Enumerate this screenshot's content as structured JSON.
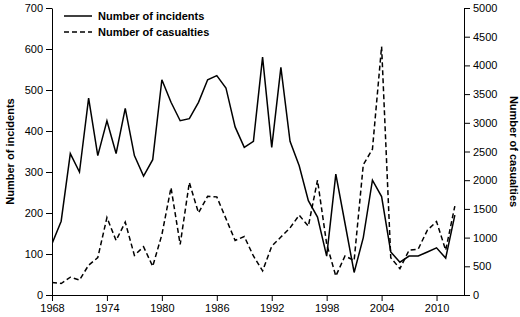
{
  "chart_data": {
    "type": "line",
    "ylabel": "Number of incidents",
    "y2label": "Number of casualties",
    "x": [
      1968,
      1969,
      1970,
      1971,
      1972,
      1973,
      1974,
      1975,
      1976,
      1977,
      1978,
      1979,
      1980,
      1981,
      1982,
      1983,
      1984,
      1985,
      1986,
      1987,
      1988,
      1989,
      1990,
      1991,
      1992,
      1993,
      1994,
      1995,
      1996,
      1997,
      1998,
      1999,
      2000,
      2001,
      2002,
      2003,
      2004,
      2005,
      2006,
      2007,
      2008,
      2009,
      2010,
      2011,
      2012
    ],
    "xlim": [
      1968,
      2013
    ],
    "xticks": [
      1968,
      1974,
      1980,
      1986,
      1992,
      1998,
      2004,
      2010
    ],
    "ylim": [
      0,
      700
    ],
    "yticks": [
      0,
      100,
      200,
      300,
      400,
      500,
      600,
      700
    ],
    "y2lim": [
      0,
      5000
    ],
    "y2ticks": [
      0,
      500,
      1000,
      1500,
      2000,
      2500,
      3000,
      3500,
      4000,
      4500,
      5000
    ],
    "legend": "upper-left",
    "series": [
      {
        "name": "Number of incidents",
        "color": "#000000",
        "line_style": "solid",
        "values": [
          125,
          180,
          345,
          300,
          480,
          340,
          425,
          345,
          455,
          340,
          290,
          330,
          525,
          470,
          425,
          430,
          470,
          525,
          535,
          505,
          410,
          360,
          375,
          580,
          360,
          555,
          375,
          315,
          230,
          190,
          95,
          295,
          175,
          55,
          140,
          280,
          240,
          105,
          80,
          95,
          95,
          105,
          115,
          90,
          195
        ]
      },
      {
        "name": "Number of casualties",
        "color": "#000000",
        "line_style": "dashed",
        "axis": "y2",
        "values": [
          220,
          200,
          310,
          260,
          520,
          650,
          1350,
          950,
          1270,
          690,
          840,
          500,
          1050,
          1870,
          880,
          1960,
          1430,
          1720,
          1710,
          1330,
          950,
          1020,
          680,
          420,
          850,
          1010,
          1170,
          1390,
          1200,
          2000,
          890,
          330,
          680,
          600,
          2270,
          2540,
          4330,
          650,
          460,
          780,
          800,
          1130,
          1280,
          780,
          1550
        ]
      }
    ]
  }
}
